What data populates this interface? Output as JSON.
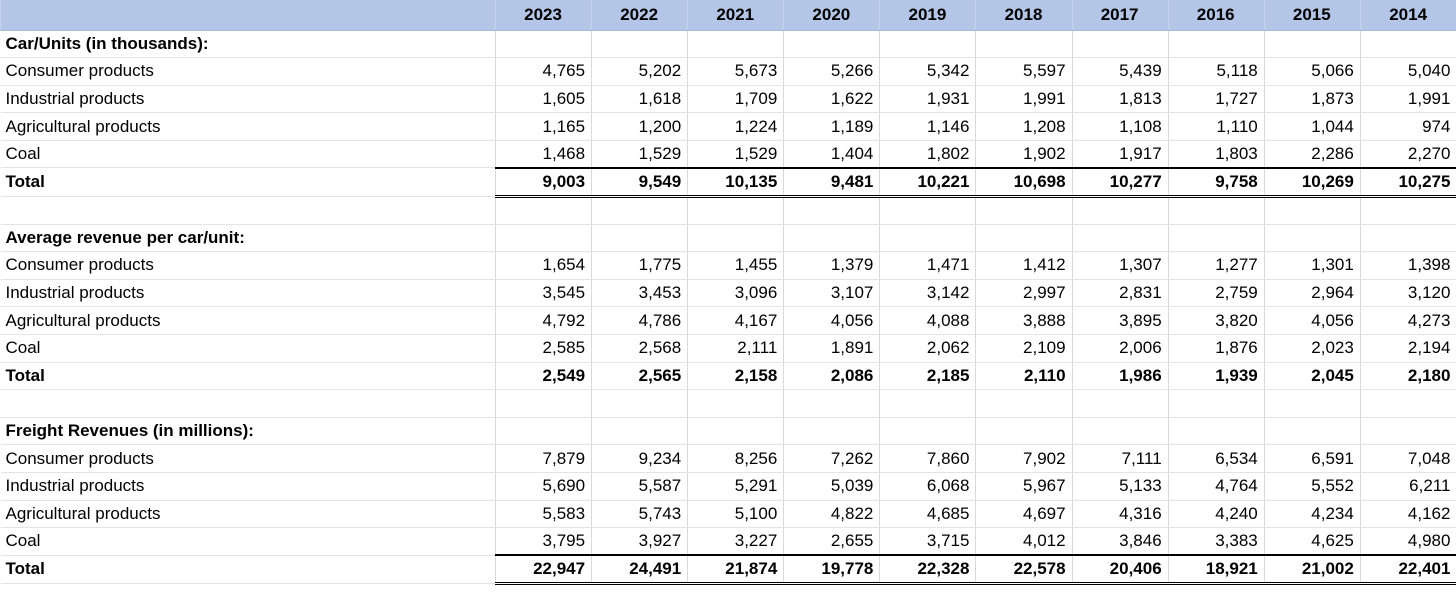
{
  "columns": [
    "",
    "2023",
    "2022",
    "2021",
    "2020",
    "2019",
    "2018",
    "2017",
    "2016",
    "2015",
    "2014"
  ],
  "rows": [
    {
      "type": "section",
      "label": "Car/Units (in thousands):"
    },
    {
      "type": "data",
      "label": "Consumer products",
      "values": [
        "4,765",
        "5,202",
        "5,673",
        "5,266",
        "5,342",
        "5,597",
        "5,439",
        "5,118",
        "5,066",
        "5,040"
      ]
    },
    {
      "type": "data",
      "label": "Industrial products",
      "values": [
        "1,605",
        "1,618",
        "1,709",
        "1,622",
        "1,931",
        "1,991",
        "1,813",
        "1,727",
        "1,873",
        "1,991"
      ]
    },
    {
      "type": "data",
      "label": "Agricultural products",
      "values": [
        "1,165",
        "1,200",
        "1,224",
        "1,189",
        "1,146",
        "1,208",
        "1,108",
        "1,110",
        "1,044",
        "974"
      ]
    },
    {
      "type": "data",
      "label": "Coal",
      "values": [
        "1,468",
        "1,529",
        "1,529",
        "1,404",
        "1,802",
        "1,902",
        "1,917",
        "1,803",
        "2,286",
        "2,270"
      ]
    },
    {
      "type": "total",
      "label": "Total",
      "values": [
        "9,003",
        "9,549",
        "10,135",
        "9,481",
        "10,221",
        "10,698",
        "10,277",
        "9,758",
        "10,269",
        "10,275"
      ]
    },
    {
      "type": "blank"
    },
    {
      "type": "section",
      "label": "Average revenue per car/unit:"
    },
    {
      "type": "data",
      "label": "Consumer products",
      "values": [
        "1,654",
        "1,775",
        "1,455",
        "1,379",
        "1,471",
        "1,412",
        "1,307",
        "1,277",
        "1,301",
        "1,398"
      ]
    },
    {
      "type": "data",
      "label": "Industrial products",
      "values": [
        "3,545",
        "3,453",
        "3,096",
        "3,107",
        "3,142",
        "2,997",
        "2,831",
        "2,759",
        "2,964",
        "3,120"
      ]
    },
    {
      "type": "data",
      "label": "Agricultural products",
      "values": [
        "4,792",
        "4,786",
        "4,167",
        "4,056",
        "4,088",
        "3,888",
        "3,895",
        "3,820",
        "4,056",
        "4,273"
      ]
    },
    {
      "type": "data",
      "label": "Coal",
      "values": [
        "2,585",
        "2,568",
        "2,111",
        "1,891",
        "2,062",
        "2,109",
        "2,006",
        "1,876",
        "2,023",
        "2,194"
      ]
    },
    {
      "type": "total-plain",
      "label": "Total",
      "values": [
        "2,549",
        "2,565",
        "2,158",
        "2,086",
        "2,185",
        "2,110",
        "1,986",
        "1,939",
        "2,045",
        "2,180"
      ]
    },
    {
      "type": "blank"
    },
    {
      "type": "section",
      "label": "Freight Revenues (in millions):"
    },
    {
      "type": "data",
      "label": "Consumer products",
      "values": [
        "7,879",
        "9,234",
        "8,256",
        "7,262",
        "7,860",
        "7,902",
        "7,111",
        "6,534",
        "6,591",
        "7,048"
      ]
    },
    {
      "type": "data",
      "label": "Industrial products",
      "values": [
        "5,690",
        "5,587",
        "5,291",
        "5,039",
        "6,068",
        "5,967",
        "5,133",
        "4,764",
        "5,552",
        "6,211"
      ]
    },
    {
      "type": "data",
      "label": "Agricultural products",
      "values": [
        "5,583",
        "5,743",
        "5,100",
        "4,822",
        "4,685",
        "4,697",
        "4,316",
        "4,240",
        "4,234",
        "4,162"
      ]
    },
    {
      "type": "data",
      "label": "Coal",
      "values": [
        "3,795",
        "3,927",
        "3,227",
        "2,655",
        "3,715",
        "4,012",
        "3,846",
        "3,383",
        "4,625",
        "4,980"
      ]
    },
    {
      "type": "total",
      "label": "Total",
      "values": [
        "22,947",
        "24,491",
        "21,874",
        "19,778",
        "22,328",
        "22,578",
        "20,406",
        "18,921",
        "21,002",
        "22,401"
      ]
    }
  ]
}
